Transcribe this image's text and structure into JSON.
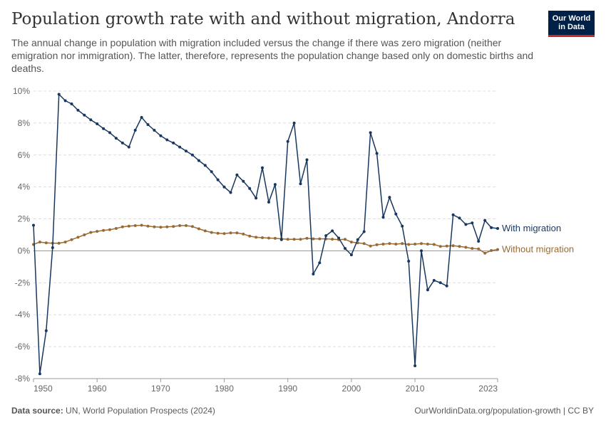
{
  "header": {
    "title": "Population growth rate with and without migration, Andorra",
    "subtitle": "The annual change in population with migration included versus the change if there was zero migration (neither emigration nor immigration). The latter, therefore, represents the population change based only on domestic births and deaths."
  },
  "logo": {
    "line1": "Our World",
    "line2": "in Data"
  },
  "footer": {
    "source_label": "Data source:",
    "source_text": "UN, World Population Prospects (2024)",
    "credit": "OurWorldinData.org/population-growth | CC BY"
  },
  "colors": {
    "with_migration": "#18375f",
    "without_migration": "#9a6a34",
    "grid": "#dddddd",
    "zero_line": "#999999"
  },
  "chart_data": {
    "type": "line",
    "title": "Population growth rate with and without migration, Andorra",
    "xlim": [
      1950,
      2023
    ],
    "ylim": [
      -8,
      10
    ],
    "y_ticks": [
      -8,
      -6,
      -4,
      -2,
      0,
      2,
      4,
      6,
      8,
      10
    ],
    "y_tick_labels": [
      "-8%",
      "-6%",
      "-4%",
      "-2%",
      "0%",
      "2%",
      "4%",
      "6%",
      "8%",
      "10%"
    ],
    "x_ticks": [
      1950,
      1960,
      1970,
      1980,
      1990,
      2000,
      2010,
      2023
    ],
    "x_tick_labels": [
      "1950",
      "1960",
      "1970",
      "1980",
      "1990",
      "2000",
      "2010",
      "2023"
    ],
    "grid": "horizontal dashed",
    "legend": "inline labels at right end of lines",
    "x": [
      1950,
      1951,
      1952,
      1953,
      1954,
      1955,
      1956,
      1957,
      1958,
      1959,
      1960,
      1961,
      1962,
      1963,
      1964,
      1965,
      1966,
      1967,
      1968,
      1969,
      1970,
      1971,
      1972,
      1973,
      1974,
      1975,
      1976,
      1977,
      1978,
      1979,
      1980,
      1981,
      1982,
      1983,
      1984,
      1985,
      1986,
      1987,
      1988,
      1989,
      1990,
      1991,
      1992,
      1993,
      1994,
      1995,
      1996,
      1997,
      1998,
      1999,
      2000,
      2001,
      2002,
      2003,
      2004,
      2005,
      2006,
      2007,
      2008,
      2009,
      2010,
      2011,
      2012,
      2013,
      2014,
      2015,
      2016,
      2017,
      2018,
      2019,
      2020,
      2021,
      2022,
      2023
    ],
    "series": [
      {
        "name": "With migration",
        "values": [
          1.6,
          -7.7,
          -5.0,
          0.2,
          9.8,
          9.4,
          9.2,
          8.8,
          8.5,
          8.2,
          7.95,
          7.65,
          7.4,
          7.05,
          6.75,
          6.5,
          7.55,
          8.35,
          7.9,
          7.55,
          7.2,
          6.95,
          6.75,
          6.5,
          6.25,
          6.0,
          5.65,
          5.35,
          4.95,
          4.45,
          4.0,
          3.65,
          4.75,
          4.35,
          3.9,
          3.3,
          5.2,
          3.05,
          4.15,
          0.7,
          6.85,
          8.0,
          4.2,
          5.7,
          -1.45,
          -0.75,
          0.95,
          1.25,
          0.8,
          0.15,
          -0.25,
          0.7,
          1.2,
          7.4,
          6.1,
          2.1,
          3.35,
          2.3,
          1.55,
          -0.65,
          -7.2,
          0.0,
          -2.45,
          -1.85,
          -2.0,
          -2.2,
          2.25,
          2.05,
          1.65,
          1.75,
          0.6,
          1.9,
          1.45,
          1.4
        ]
      },
      {
        "name": "Without migration",
        "values": [
          0.4,
          0.55,
          0.5,
          0.48,
          0.48,
          0.55,
          0.7,
          0.85,
          1.0,
          1.15,
          1.22,
          1.28,
          1.32,
          1.4,
          1.5,
          1.55,
          1.58,
          1.6,
          1.55,
          1.5,
          1.48,
          1.5,
          1.52,
          1.58,
          1.58,
          1.52,
          1.38,
          1.25,
          1.15,
          1.1,
          1.08,
          1.12,
          1.12,
          1.05,
          0.92,
          0.85,
          0.82,
          0.8,
          0.78,
          0.75,
          0.72,
          0.72,
          0.72,
          0.78,
          0.75,
          0.75,
          0.75,
          0.73,
          0.7,
          0.72,
          0.55,
          0.5,
          0.45,
          0.3,
          0.38,
          0.42,
          0.45,
          0.42,
          0.45,
          0.4,
          0.42,
          0.45,
          0.42,
          0.4,
          0.28,
          0.3,
          0.32,
          0.28,
          0.22,
          0.15,
          0.12,
          -0.15,
          0.02,
          0.08
        ]
      }
    ]
  }
}
